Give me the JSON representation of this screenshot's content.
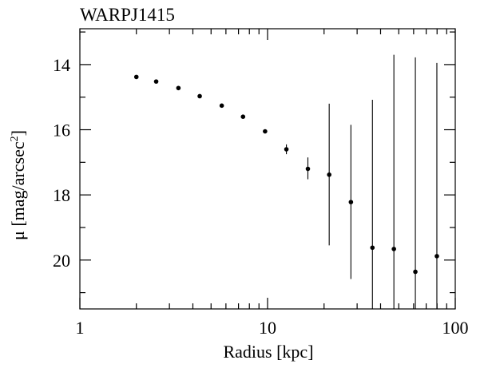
{
  "chart_data": {
    "type": "scatter",
    "title": "WARPJ1415",
    "xlabel": "Radius [kpc]",
    "ylabel_main": "μ [mag/arcsec",
    "ylabel_sup": "2",
    "ylabel_close": "]",
    "x_scale": "log",
    "y_inverted": true,
    "xlim": [
      1,
      100
    ],
    "ylim": [
      21.5,
      12.9
    ],
    "x_major_ticks": [
      1,
      10,
      100
    ],
    "x_tick_labels": [
      "1",
      "10",
      "100"
    ],
    "y_major_ticks": [
      14,
      16,
      18,
      20
    ],
    "y_tick_labels": [
      "14",
      "16",
      "18",
      "20"
    ],
    "y_minor_step": 1,
    "grid": false,
    "points": [
      {
        "x": 2.0,
        "y": 14.38,
        "err_low": 14.38,
        "err_high": 14.38
      },
      {
        "x": 2.55,
        "y": 14.52,
        "err_low": 14.52,
        "err_high": 14.52
      },
      {
        "x": 3.35,
        "y": 14.72,
        "err_low": 14.72,
        "err_high": 14.72
      },
      {
        "x": 4.35,
        "y": 14.97,
        "err_low": 14.97,
        "err_high": 14.97
      },
      {
        "x": 5.7,
        "y": 15.26,
        "err_low": 15.26,
        "err_high": 15.26
      },
      {
        "x": 7.4,
        "y": 15.6,
        "err_low": 15.6,
        "err_high": 15.6
      },
      {
        "x": 9.7,
        "y": 16.05,
        "err_low": 16.05,
        "err_high": 16.05
      },
      {
        "x": 12.6,
        "y": 16.6,
        "err_low": 16.45,
        "err_high": 16.75
      },
      {
        "x": 16.4,
        "y": 17.2,
        "err_low": 16.85,
        "err_high": 17.52
      },
      {
        "x": 21.3,
        "y": 17.38,
        "err_low": 15.2,
        "err_high": 19.55
      },
      {
        "x": 27.8,
        "y": 18.22,
        "err_low": 15.85,
        "err_high": 20.58
      },
      {
        "x": 36.2,
        "y": 19.62,
        "err_low": 15.08,
        "err_high": 21.5
      },
      {
        "x": 47.1,
        "y": 19.66,
        "err_low": 13.7,
        "err_high": 21.5
      },
      {
        "x": 61.3,
        "y": 20.36,
        "err_low": 13.78,
        "err_high": 21.5
      },
      {
        "x": 79.8,
        "y": 19.88,
        "err_low": 13.95,
        "err_high": 21.5
      }
    ]
  }
}
